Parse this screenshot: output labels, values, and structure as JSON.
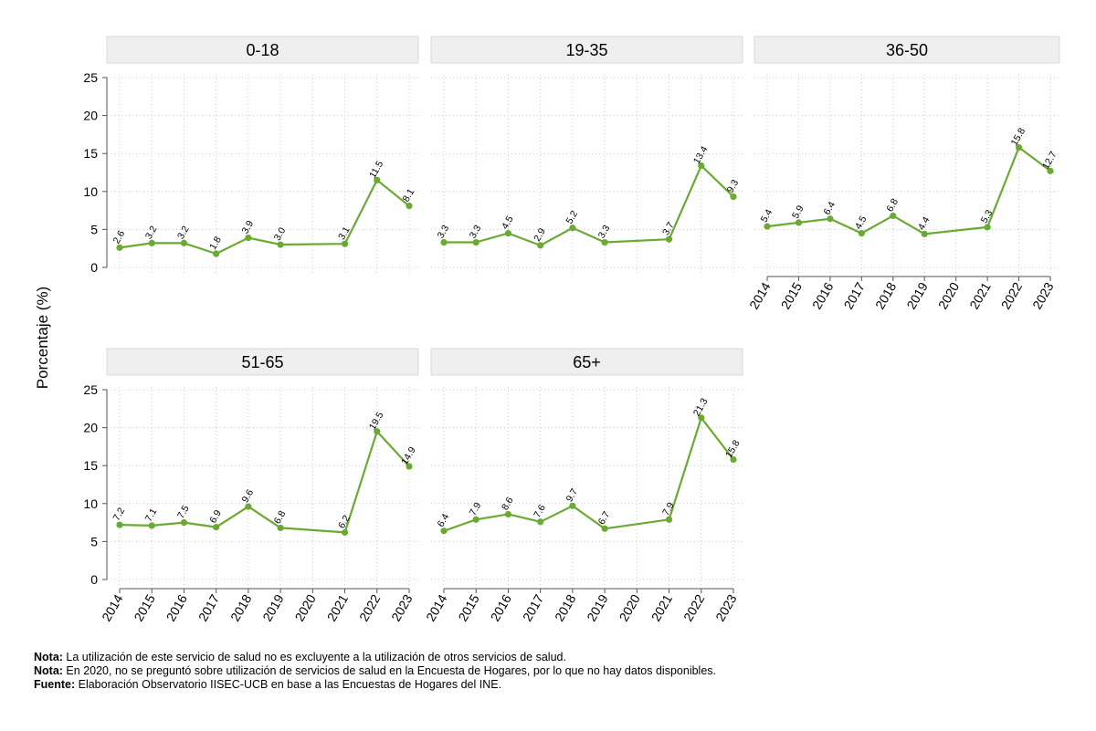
{
  "chart_data": {
    "type": "line",
    "ylabel": "Porcentaje (%)",
    "ylim": [
      0,
      25
    ],
    "yticks": [
      0,
      5,
      10,
      15,
      20,
      25
    ],
    "x": [
      "2014",
      "2015",
      "2016",
      "2017",
      "2018",
      "2019",
      "2020",
      "2021",
      "2022",
      "2023"
    ],
    "grid": true,
    "line_color": "#6aaa32",
    "panels": [
      {
        "title": "0-18",
        "values": [
          2.6,
          3.2,
          3.2,
          1.8,
          3.9,
          3.0,
          null,
          3.1,
          11.5,
          8.1
        ],
        "labels": [
          "2.6",
          "3.2",
          "3.2",
          "1.8",
          "3.9",
          "3.0",
          "",
          "3.1",
          "11.5",
          "8.1"
        ]
      },
      {
        "title": "19-35",
        "values": [
          3.3,
          3.3,
          4.5,
          2.9,
          5.2,
          3.3,
          null,
          3.7,
          13.4,
          9.3
        ],
        "labels": [
          "3.3",
          "3.3",
          "4.5",
          "2.9",
          "5.2",
          "3.3",
          "",
          "3.7",
          "13.4",
          "9.3"
        ]
      },
      {
        "title": "36-50",
        "values": [
          5.4,
          5.9,
          6.4,
          4.5,
          6.8,
          4.4,
          null,
          5.3,
          15.8,
          12.7
        ],
        "labels": [
          "5.4",
          "5.9",
          "6.4",
          "4.5",
          "6.8",
          "4.4",
          "",
          "5.3",
          "15.8",
          "12.7"
        ]
      },
      {
        "title": "51-65",
        "values": [
          7.2,
          7.1,
          7.5,
          6.9,
          9.6,
          6.8,
          null,
          6.2,
          19.5,
          14.9
        ],
        "labels": [
          "7.2",
          "7.1",
          "7.5",
          "6.9",
          "9.6",
          "6.8",
          "",
          "6.2",
          "19.5",
          "14.9"
        ]
      },
      {
        "title": "65+",
        "values": [
          6.4,
          7.9,
          8.6,
          7.6,
          9.7,
          6.7,
          null,
          7.9,
          21.3,
          15.8
        ],
        "labels": [
          "6.4",
          "7.9",
          "8.6",
          "7.6",
          "9.7",
          "6.7",
          "",
          "7.9",
          "21.3",
          "15.8"
        ]
      }
    ]
  },
  "notes": [
    {
      "label": "Nota:",
      "text": " La utilización de este servicio de salud no es excluyente a la utilización de otros servicios de salud."
    },
    {
      "label": "Nota:",
      "text": " En 2020, no se preguntó sobre utilización de servicios de salud en la Encuesta de Hogares, por lo que no hay datos disponibles."
    },
    {
      "label": "Fuente:",
      "text": " Elaboración Observatorio IISEC-UCB en base a las Encuestas de Hogares del INE."
    }
  ]
}
